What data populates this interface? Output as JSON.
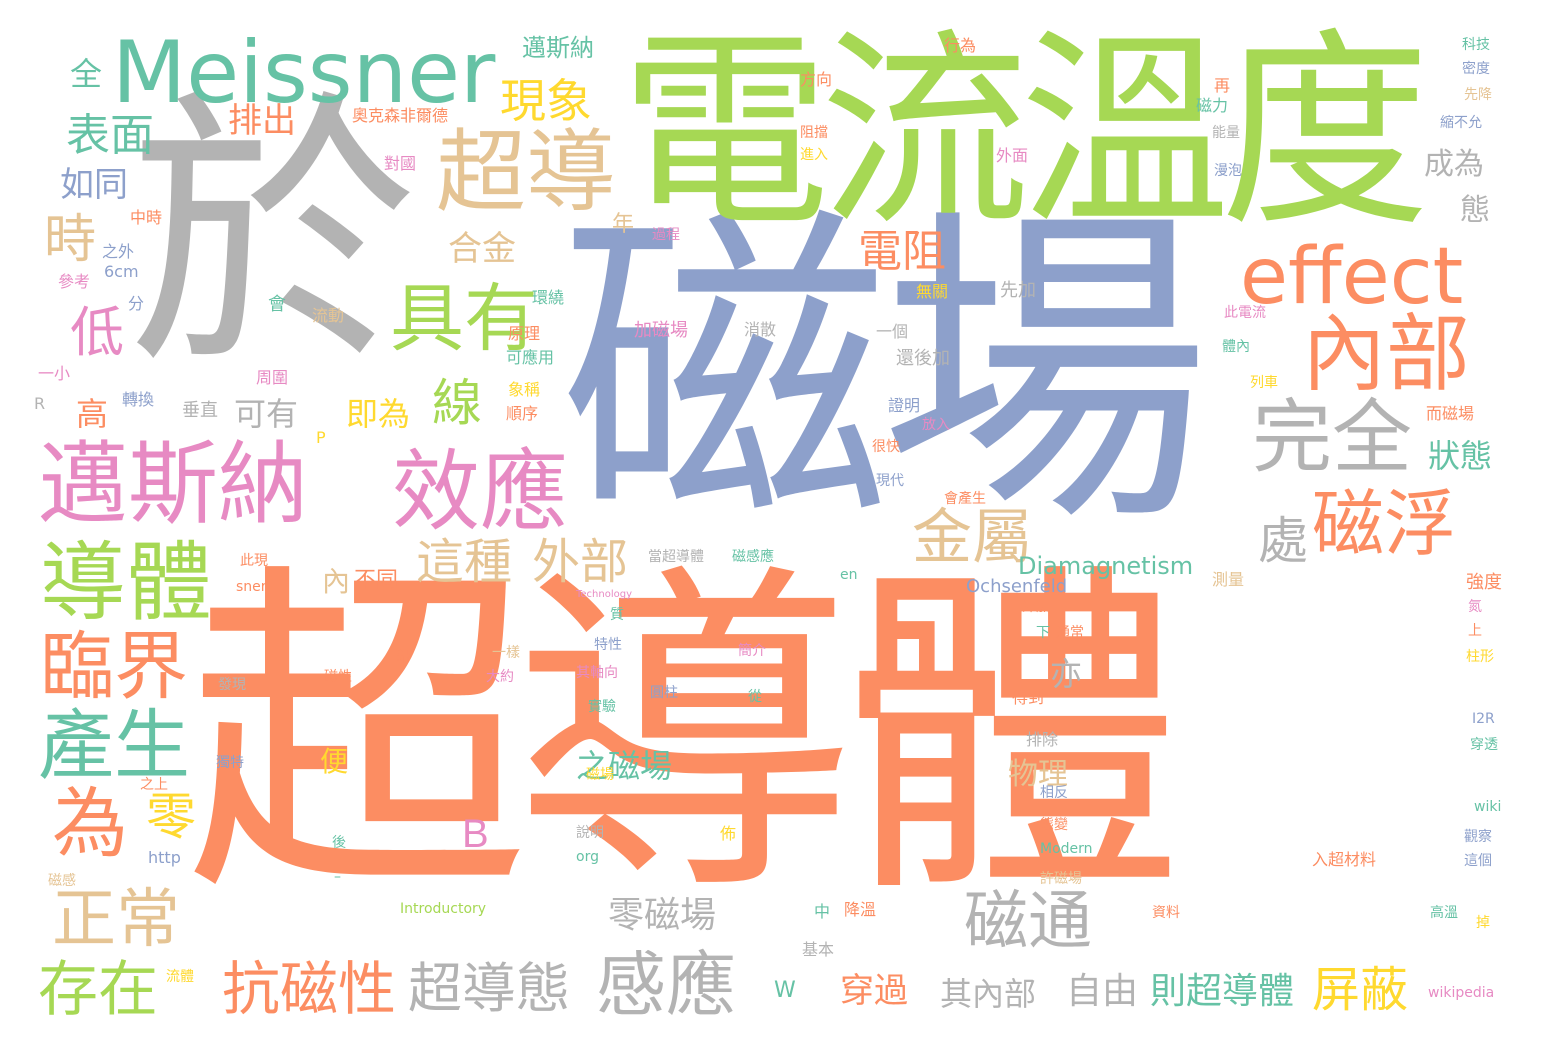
{
  "palette": {
    "orange": "#fc8d62",
    "blue": "#8da0cb",
    "green": "#a6d854",
    "teal": "#66c2a5",
    "gray": "#b3b3b3",
    "tan": "#e5c494",
    "pink": "#e78ac3",
    "yellow": "#ffd92f"
  },
  "words": [
    {
      "text": "超導體",
      "color": "orange"
    },
    {
      "text": "磁場",
      "color": "blue"
    },
    {
      "text": "於",
      "color": "gray"
    },
    {
      "text": "電流",
      "color": "green"
    },
    {
      "text": "溫度",
      "color": "green"
    },
    {
      "text": "Meissner",
      "color": "teal"
    },
    {
      "text": "超導",
      "color": "tan"
    },
    {
      "text": "effect",
      "color": "orange"
    },
    {
      "text": "內部",
      "color": "orange"
    },
    {
      "text": "邁斯納",
      "color": "pink"
    },
    {
      "text": "效應",
      "color": "pink"
    },
    {
      "text": "具有",
      "color": "green"
    },
    {
      "text": "完全",
      "color": "gray"
    },
    {
      "text": "磁浮",
      "color": "orange"
    },
    {
      "text": "導體",
      "color": "green"
    },
    {
      "text": "臨界",
      "color": "orange"
    },
    {
      "text": "產生",
      "color": "teal"
    },
    {
      "text": "為",
      "color": "orange"
    },
    {
      "text": "正常",
      "color": "tan"
    },
    {
      "text": "存在",
      "color": "green"
    },
    {
      "text": "抗磁性",
      "color": "orange"
    },
    {
      "text": "超導態",
      "color": "gray"
    },
    {
      "text": "感應",
      "color": "gray"
    },
    {
      "text": "磁通",
      "color": "gray"
    },
    {
      "text": "這種",
      "color": "tan"
    },
    {
      "text": "外部",
      "color": "tan"
    },
    {
      "text": "金屬",
      "color": "tan"
    },
    {
      "text": "電阻",
      "color": "orange"
    },
    {
      "text": "線",
      "color": "green"
    },
    {
      "text": "現象",
      "color": "yellow"
    },
    {
      "text": "表面",
      "color": "teal"
    },
    {
      "text": "時",
      "color": "tan"
    },
    {
      "text": "低",
      "color": "pink"
    },
    {
      "text": "如同",
      "color": "blue"
    },
    {
      "text": "排出",
      "color": "orange"
    },
    {
      "text": "合金",
      "color": "tan"
    },
    {
      "text": "處",
      "color": "gray"
    },
    {
      "text": "屏蔽",
      "color": "yellow"
    },
    {
      "text": "零",
      "color": "yellow"
    },
    {
      "text": "B",
      "color": "pink"
    },
    {
      "text": "零磁場",
      "color": "gray"
    },
    {
      "text": "自由",
      "color": "gray"
    },
    {
      "text": "則超導體",
      "color": "teal"
    },
    {
      "text": "其內部",
      "color": "gray"
    },
    {
      "text": "穿過",
      "color": "orange"
    },
    {
      "text": "狀態",
      "color": "teal"
    },
    {
      "text": "成為",
      "color": "gray"
    },
    {
      "text": "態",
      "color": "gray"
    },
    {
      "text": "全",
      "color": "teal"
    },
    {
      "text": "邁斯納",
      "color": "teal"
    },
    {
      "text": "即為",
      "color": "yellow"
    },
    {
      "text": "可有",
      "color": "gray"
    },
    {
      "text": "高",
      "color": "orange"
    },
    {
      "text": "亦",
      "color": "gray"
    },
    {
      "text": "之磁場",
      "color": "teal"
    },
    {
      "text": "物理",
      "color": "tan"
    },
    {
      "text": "便",
      "color": "yellow"
    },
    {
      "text": "Diamagnetism",
      "color": "teal"
    },
    {
      "text": "Ochsenfeld",
      "color": "blue"
    },
    {
      "text": "內",
      "color": "tan"
    },
    {
      "text": "不同",
      "color": "orange"
    },
    {
      "text": "年",
      "color": "tan"
    },
    {
      "text": "行為",
      "color": "orange"
    },
    {
      "text": "方向",
      "color": "orange"
    },
    {
      "text": "奧克森非爾德",
      "color": "orange"
    },
    {
      "text": "對國",
      "color": "pink"
    },
    {
      "text": "中時",
      "color": "orange"
    },
    {
      "text": "之外",
      "color": "blue"
    },
    {
      "text": "6cm",
      "color": "blue"
    },
    {
      "text": "參考",
      "color": "pink"
    },
    {
      "text": "分",
      "color": "blue"
    },
    {
      "text": "會",
      "color": "teal"
    },
    {
      "text": "流動",
      "color": "tan"
    },
    {
      "text": "環繞",
      "color": "teal"
    },
    {
      "text": "原理",
      "color": "orange"
    },
    {
      "text": "可應用",
      "color": "teal"
    },
    {
      "text": "象稱",
      "color": "yellow"
    },
    {
      "text": "順序",
      "color": "orange"
    },
    {
      "text": "周圍",
      "color": "pink"
    },
    {
      "text": "轉換",
      "color": "blue"
    },
    {
      "text": "垂直",
      "color": "gray"
    },
    {
      "text": "一小",
      "color": "pink"
    },
    {
      "text": "R",
      "color": "gray"
    },
    {
      "text": "P",
      "color": "yellow"
    },
    {
      "text": "過程",
      "color": "pink"
    },
    {
      "text": "阻擋",
      "color": "orange"
    },
    {
      "text": "進入",
      "color": "yellow"
    },
    {
      "text": "外面",
      "color": "pink"
    },
    {
      "text": "無關",
      "color": "yellow"
    },
    {
      "text": "先加",
      "color": "gray"
    },
    {
      "text": "加磁場",
      "color": "pink"
    },
    {
      "text": "消散",
      "color": "gray"
    },
    {
      "text": "一個",
      "color": "gray"
    },
    {
      "text": "還後加",
      "color": "gray"
    },
    {
      "text": "證明",
      "color": "blue"
    },
    {
      "text": "很快",
      "color": "orange"
    },
    {
      "text": "放入",
      "color": "pink"
    },
    {
      "text": "現代",
      "color": "blue"
    },
    {
      "text": "會產生",
      "color": "orange"
    },
    {
      "text": "磁力",
      "color": "teal"
    },
    {
      "text": "再",
      "color": "orange"
    },
    {
      "text": "能量",
      "color": "gray"
    },
    {
      "text": "漫泡",
      "color": "blue"
    },
    {
      "text": "此電流",
      "color": "pink"
    },
    {
      "text": "體內",
      "color": "teal"
    },
    {
      "text": "列車",
      "color": "yellow"
    },
    {
      "text": "而磁場",
      "color": "orange"
    },
    {
      "text": "科技",
      "color": "teal"
    },
    {
      "text": "密度",
      "color": "blue"
    },
    {
      "text": "先降",
      "color": "tan"
    },
    {
      "text": "縮不允",
      "color": "blue"
    },
    {
      "text": "強度",
      "color": "orange"
    },
    {
      "text": "氮",
      "color": "pink"
    },
    {
      "text": "上",
      "color": "orange"
    },
    {
      "text": "柱形",
      "color": "yellow"
    },
    {
      "text": "I2R",
      "color": "blue"
    },
    {
      "text": "穿透",
      "color": "teal"
    },
    {
      "text": "wiki",
      "color": "teal"
    },
    {
      "text": "觀察",
      "color": "blue"
    },
    {
      "text": "這個",
      "color": "blue"
    },
    {
      "text": "入超材料",
      "color": "orange"
    },
    {
      "text": "高溫",
      "color": "teal"
    },
    {
      "text": "掉",
      "color": "yellow"
    },
    {
      "text": "wikipedia",
      "color": "pink"
    },
    {
      "text": "資料",
      "color": "orange"
    },
    {
      "text": "許磁場",
      "color": "tan"
    },
    {
      "text": "Modern",
      "color": "teal"
    },
    {
      "text": "態變",
      "color": "orange"
    },
    {
      "text": "相反",
      "color": "blue"
    },
    {
      "text": "排除",
      "color": "gray"
    },
    {
      "text": "得到",
      "color": "orange"
    },
    {
      "text": "外加",
      "color": "orange"
    },
    {
      "text": "通常",
      "color": "orange"
    },
    {
      "text": "下",
      "color": "teal"
    },
    {
      "text": "測量",
      "color": "tan"
    },
    {
      "text": "當超導體",
      "color": "gray"
    },
    {
      "text": "磁感應",
      "color": "teal"
    },
    {
      "text": "en",
      "color": "teal"
    },
    {
      "text": "Technology",
      "color": "pink"
    },
    {
      "text": "質",
      "color": "teal"
    },
    {
      "text": "特性",
      "color": "blue"
    },
    {
      "text": "其軸向",
      "color": "pink"
    },
    {
      "text": "簡介",
      "color": "pink"
    },
    {
      "text": "圓柱",
      "color": "blue"
    },
    {
      "text": "從",
      "color": "teal"
    },
    {
      "text": "實驗",
      "color": "teal"
    },
    {
      "text": "一樣",
      "color": "tan"
    },
    {
      "text": "大約",
      "color": "pink"
    },
    {
      "text": "鉛",
      "color": "orange"
    },
    {
      "text": "磁性",
      "color": "orange"
    },
    {
      "text": "發現",
      "color": "gray"
    },
    {
      "text": "此現",
      "color": "orange"
    },
    {
      "text": "sner",
      "color": "orange"
    },
    {
      "text": "獨特",
      "color": "blue"
    },
    {
      "text": "之上",
      "color": "orange"
    },
    {
      "text": "磁場",
      "color": "yellow"
    },
    {
      "text": "說明",
      "color": "gray"
    },
    {
      "text": "org",
      "color": "teal"
    },
    {
      "text": "佈",
      "color": "yellow"
    },
    {
      "text": "後",
      "color": "teal"
    },
    {
      "text": "http",
      "color": "blue"
    },
    {
      "text": "磁感",
      "color": "tan"
    },
    {
      "text": "Introductory",
      "color": "green"
    },
    {
      "text": "中",
      "color": "teal"
    },
    {
      "text": "降溫",
      "color": "orange"
    },
    {
      "text": "基本",
      "color": "gray"
    },
    {
      "text": "W",
      "color": "teal"
    },
    {
      "text": "流體",
      "color": "yellow"
    },
    {
      "text": "–",
      "color": "teal"
    }
  ]
}
